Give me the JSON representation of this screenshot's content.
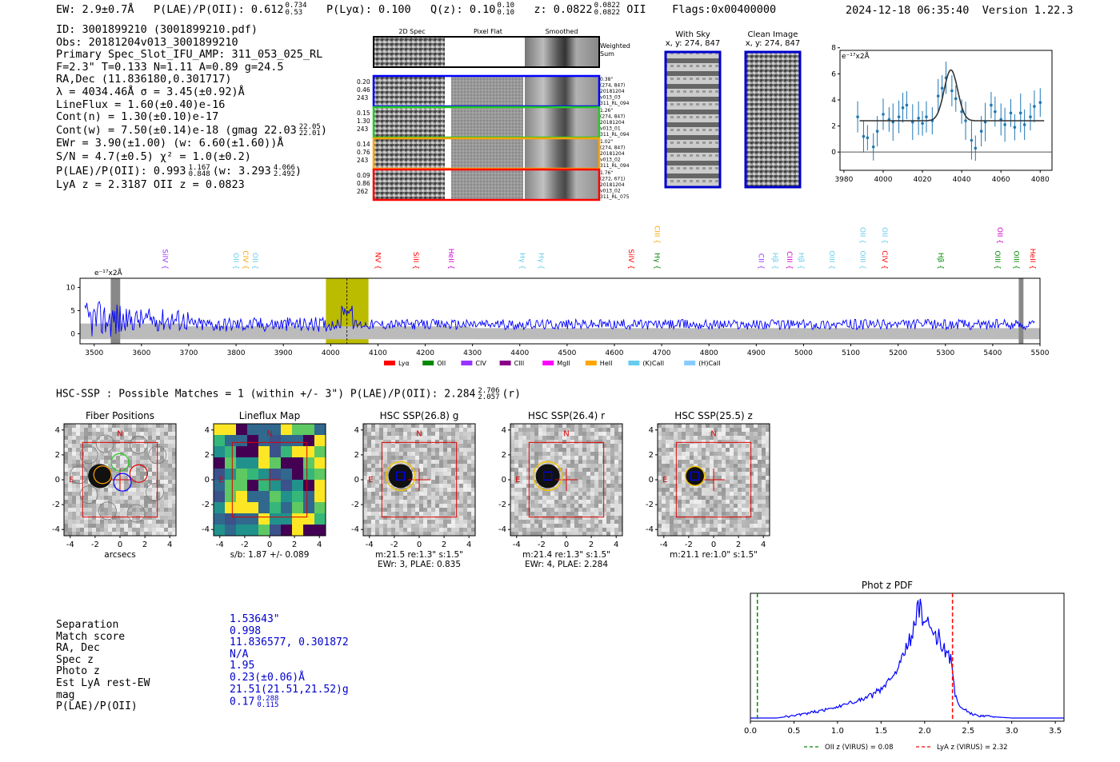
{
  "header": {
    "ew": "EW: 2.9±0.7Å",
    "plae_label": "P(LAE)/P(OII): 0.612",
    "plae_sup": "0.734",
    "plae_sub": "0.53",
    "plya": "P(Lyα): 0.100",
    "qz_label": "Q(z): 0.10",
    "qz_sup": "0.10",
    "qz_sub": "0.10",
    "z_label": "z: 0.0822",
    "z_sup": "0.0822",
    "z_sub": "0.0822",
    "z_line": "OII",
    "flags": "Flags:0x00400000",
    "datetime": "2024-12-18 06:35:40",
    "version": "Version 1.22.3"
  },
  "info": {
    "id": "ID: 3001899210 (3001899210.pdf)",
    "obs": "Obs: 20181204v013_3001899210",
    "primary": "Primary Spec_Slot_IFU_AMP: 311_053_025_RL",
    "fit": "F=2.3\"  T=0.133  N=1.11  A=0.89  g=24.5",
    "radec": "RA,Dec (11.836180,0.301717)",
    "lambda": "λ = 4034.46Å  σ = 3.45(±0.92)Å",
    "lineflux": "LineFlux = 1.60(±0.40)e-16",
    "contn": "Cont(n) = 1.30(±0.10)e-17",
    "contw": "Cont(w) = 7.50(±0.14)e-18 (gmag 22.03",
    "contw_sup": "22.05",
    "contw_sub": "22.01",
    "ewr": "EWr = 3.90(±1.00) (w: 6.60(±1.60))Å",
    "sn": "S/N = 4.7(±0.5)  χ² = 1.0(±0.2)",
    "plae": "P(LAE)/P(OII): 0.993",
    "plae_sup": "1.167",
    "plae_sub": "0.848",
    "plae_w": "(w: 3.293",
    "plae_w_sup": "4.066",
    "plae_w_sub": "2.492",
    "lyaz": "LyA z = 2.3187  OII z = 0.0823"
  },
  "cutouts": {
    "col_2d": "2D Spec",
    "col_flat": "Pixel Flat",
    "col_smooth": "Smoothed",
    "weighted1": "Weighted",
    "weighted2": "Sum",
    "rows": [
      {
        "color": "#0000ff",
        "l1": "0.20",
        "l2": "0.46",
        "l3": "243",
        "r1": "0.38\"",
        "r2": "(274, 847)",
        "r3": "20181204",
        "r4": "v013_03",
        "r5": "311_RL_094"
      },
      {
        "color": "#22cc22",
        "l1": "0.15",
        "l2": "1.30",
        "l3": "243",
        "r1": "1.26\"",
        "r2": "(274, 847)",
        "r3": "20181204",
        "r4": "v013_01",
        "r5": "311_RL_094"
      },
      {
        "color": "#ffa500",
        "l1": "0.14",
        "l2": "0.76",
        "l3": "243",
        "r1": "1.02\"",
        "r2": "(274, 847)",
        "r3": "20181204",
        "r4": "v013_02",
        "r5": "311_RL_094"
      },
      {
        "color": "#ff0000",
        "l1": "0.09",
        "l2": "0.86",
        "l3": "262",
        "r1": "1.76\"",
        "r2": "(272, 671)",
        "r3": "20181204",
        "r4": "v013_02",
        "r5": "311_RL_075"
      }
    ]
  },
  "sky": {
    "with_title": "With Sky",
    "with_coord": "x, y: 274, 847",
    "clean_title": "Clean Image",
    "clean_coord": "x, y: 274, 847"
  },
  "zoom_fit": {
    "unit": "e⁻¹⁷x2Å",
    "xticks": [
      3980,
      4000,
      4020,
      4040,
      4060,
      4080
    ],
    "yticks": [
      0,
      2,
      4,
      6,
      8
    ],
    "xlim": [
      3978,
      4086
    ],
    "ylim": [
      -1.4,
      7.8
    ],
    "points": [
      [
        3987,
        2.7
      ],
      [
        3990,
        1.2
      ],
      [
        3992,
        1.1
      ],
      [
        3995,
        0.4
      ],
      [
        3997,
        1.6
      ],
      [
        4000,
        2.9
      ],
      [
        4003,
        2.5
      ],
      [
        4005,
        2.3
      ],
      [
        4008,
        2.7
      ],
      [
        4010,
        3.4
      ],
      [
        4012,
        3.6
      ],
      [
        4015,
        2.3
      ],
      [
        4018,
        2.6
      ],
      [
        4020,
        2.2
      ],
      [
        4022,
        2.7
      ],
      [
        4025,
        2.4
      ],
      [
        4028,
        4.3
      ],
      [
        4030,
        4.9
      ],
      [
        4032,
        5.7
      ],
      [
        4035,
        4.7
      ],
      [
        4037,
        4.1
      ],
      [
        4040,
        3.1
      ],
      [
        4042,
        2.4
      ],
      [
        4045,
        0.9
      ],
      [
        4047,
        0.3
      ],
      [
        4050,
        1.6
      ],
      [
        4052,
        2.3
      ],
      [
        4055,
        3.6
      ],
      [
        4057,
        3.1
      ],
      [
        4060,
        2.5
      ],
      [
        4062,
        2.1
      ],
      [
        4065,
        3.0
      ],
      [
        4067,
        1.9
      ],
      [
        4070,
        3.0
      ],
      [
        4072,
        2.1
      ],
      [
        4075,
        2.7
      ],
      [
        4077,
        3.5
      ],
      [
        4080,
        3.8
      ]
    ],
    "fit_cont": 2.4,
    "fit_amp": 3.9,
    "fit_center": 4034.5,
    "fit_sigma": 3.45
  },
  "spectrum": {
    "unit": "e⁻¹⁷x2Å",
    "xticks": [
      3500,
      3600,
      3700,
      3800,
      3900,
      4000,
      4100,
      4200,
      4300,
      4400,
      4500,
      4600,
      4700,
      4800,
      4900,
      5000,
      5100,
      5200,
      5300,
      5400,
      5500
    ],
    "yticks": [
      0,
      5,
      10
    ],
    "xlim": [
      3470,
      5500
    ],
    "ylim": [
      -2.2,
      12
    ],
    "highlight": [
      3990,
      4080
    ],
    "obs_line": 4034.46,
    "masked": [
      [
        3535,
        3555
      ],
      [
        5455,
        5465
      ]
    ],
    "lines": [
      {
        "label": "SiIV",
        "x": 3640,
        "color": "#9933ff",
        "tier": 1
      },
      {
        "label": "OII",
        "x": 3790,
        "color": "#66ccee",
        "tier": 1
      },
      {
        "label": "CIV",
        "x": 3810,
        "color": "#ffa500",
        "tier": 1
      },
      {
        "label": "OII",
        "x": 3830,
        "color": "#66ccee",
        "tier": 1
      },
      {
        "label": "NV",
        "x": 4090,
        "color": "#ff0000",
        "tier": 1
      },
      {
        "label": "SiII",
        "x": 4170,
        "color": "#ff0000",
        "tier": 1
      },
      {
        "label": "HeII",
        "x": 4245,
        "color": "#cc00cc",
        "tier": 1
      },
      {
        "label": "Hγ",
        "x": 4395,
        "color": "#66ccee",
        "tier": 1
      },
      {
        "label": "Hγ",
        "x": 4435,
        "color": "#66ccee",
        "tier": 1
      },
      {
        "label": "SiIV",
        "x": 4625,
        "color": "#ff0000",
        "tier": 1
      },
      {
        "label": "CIII",
        "x": 4680,
        "color": "#ffa500",
        "tier": 0
      },
      {
        "label": "Hγ",
        "x": 4680,
        "color": "#008800",
        "tier": 1
      },
      {
        "label": "CII",
        "x": 4900,
        "color": "#9933ff",
        "tier": 1
      },
      {
        "label": "Hβ",
        "x": 4930,
        "color": "#66ccee",
        "tier": 1
      },
      {
        "label": "CIII",
        "x": 4960,
        "color": "#cc00cc",
        "tier": 1
      },
      {
        "label": "Hβ",
        "x": 4985,
        "color": "#66ccee",
        "tier": 1
      },
      {
        "label": "OIII",
        "x": 5050,
        "color": "#66ccee",
        "tier": 1
      },
      {
        "label": "OII",
        "x": 5115,
        "color": "#66ccee",
        "tier": 0
      },
      {
        "label": "OIII",
        "x": 5115,
        "color": "#66ccee",
        "tier": 1
      },
      {
        "label": "OII",
        "x": 5162,
        "color": "#66ccee",
        "tier": 0
      },
      {
        "label": "CIV",
        "x": 5162,
        "color": "#ff0000",
        "tier": 1
      },
      {
        "label": "Hβ",
        "x": 5280,
        "color": "#008800",
        "tier": 1
      },
      {
        "label": "OII",
        "x": 5405,
        "color": "#cc00cc",
        "tier": 0
      },
      {
        "label": "OIII",
        "x": 5400,
        "color": "#008800",
        "tier": 1
      },
      {
        "label": "OIII",
        "x": 5440,
        "color": "#008800",
        "tier": 1
      },
      {
        "label": "HeII",
        "x": 5475,
        "color": "#ff0000",
        "tier": 1
      }
    ],
    "legend": [
      {
        "label": "Lyα",
        "color": "#ff0000"
      },
      {
        "label": "OII",
        "color": "#008800"
      },
      {
        "label": "CIV",
        "color": "#9933ff"
      },
      {
        "label": "CIII",
        "color": "#880088"
      },
      {
        "label": "MgII",
        "color": "#ff00ff"
      },
      {
        "label": "HeII",
        "color": "#ffa500"
      },
      {
        "label": "(K)CaII",
        "color": "#66ccee"
      },
      {
        "label": "(H)CaII",
        "color": "#88ccff"
      }
    ]
  },
  "hsc": {
    "heading": "HSC-SSP : Possible Matches = 1 (within +/- 3\")  P(LAE)/P(OII): 2.284",
    "heading_sup": "2.706",
    "heading_sub": "2.057",
    "heading_band": "(r)",
    "panels": [
      {
        "title": "Fiber Positions",
        "cap1": "arcsecs",
        "cap2": ""
      },
      {
        "title": "Lineflux Map",
        "cap1": "s/b: 1.87 +/- 0.089",
        "cap2": ""
      },
      {
        "title": "HSC SSP(26.8) g",
        "cap1": "m:21.5  re:1.3\"  s:1.5\"",
        "cap2": "EWr: 3, PLAE: 0.835"
      },
      {
        "title": "HSC SSP(26.4) r",
        "cap1": "m:21.4  re:1.3\"  s:1.5\"",
        "cap2": "EWr: 4, PLAE: 2.284"
      },
      {
        "title": "HSC SSP(25.5) z",
        "cap1": "m:21.1  re:1.0\"  s:1.5\"",
        "cap2": ""
      }
    ],
    "ticks": [
      -4,
      -2,
      0,
      2,
      4
    ],
    "compass_n": "N",
    "compass_e": "E"
  },
  "match_table": {
    "rows": [
      {
        "label": "Separation",
        "value": "1.53643\""
      },
      {
        "label": "Match score",
        "value": "0.998"
      },
      {
        "label": "RA, Dec",
        "value": "11.836577, 0.301872"
      },
      {
        "label": "Spec z",
        "value": "N/A"
      },
      {
        "label": "Photo z",
        "value": "1.95"
      },
      {
        "label": "Est LyA rest-EW",
        "value": "0.23(±0.06)Å"
      },
      {
        "label": "mag",
        "value": "21.51(21.51,21.52)g"
      },
      {
        "label": "P(LAE)/P(OII)",
        "value": "0.17"
      }
    ],
    "plae_sup": "0.288",
    "plae_sub": "0.115"
  },
  "chart_data": {
    "type": "line",
    "title": "Phot z PDF",
    "xlabel": "",
    "ylabel": "",
    "xlim": [
      0,
      3.6
    ],
    "ylim": [
      0,
      1
    ],
    "xticks": [
      0.0,
      0.5,
      1.0,
      1.5,
      2.0,
      2.5,
      3.0,
      3.5
    ],
    "series": [
      {
        "name": "PDF",
        "x": [
          0.0,
          0.3,
          0.5,
          0.6,
          0.7,
          0.8,
          0.9,
          1.0,
          1.1,
          1.2,
          1.3,
          1.4,
          1.5,
          1.6,
          1.7,
          1.75,
          1.8,
          1.85,
          1.9,
          1.95,
          2.0,
          2.05,
          2.1,
          2.15,
          2.2,
          2.25,
          2.3,
          2.35,
          2.4,
          2.5,
          2.6,
          2.8,
          3.0,
          3.3,
          3.6
        ],
        "y": [
          0.0,
          0.0,
          0.02,
          0.03,
          0.05,
          0.06,
          0.08,
          0.1,
          0.12,
          0.14,
          0.16,
          0.2,
          0.24,
          0.32,
          0.42,
          0.55,
          0.62,
          0.68,
          0.85,
          0.98,
          0.78,
          0.88,
          0.65,
          0.72,
          0.6,
          0.58,
          0.5,
          0.2,
          0.1,
          0.05,
          0.02,
          0.01,
          0.0,
          0.0,
          0.0
        ]
      }
    ],
    "vlines": [
      {
        "x": 0.08,
        "color": "#008800",
        "label": "OII z (VIRUS) = 0.08"
      },
      {
        "x": 2.32,
        "color": "#ff0000",
        "label": "LyA z (VIRUS) = 2.32"
      }
    ]
  }
}
